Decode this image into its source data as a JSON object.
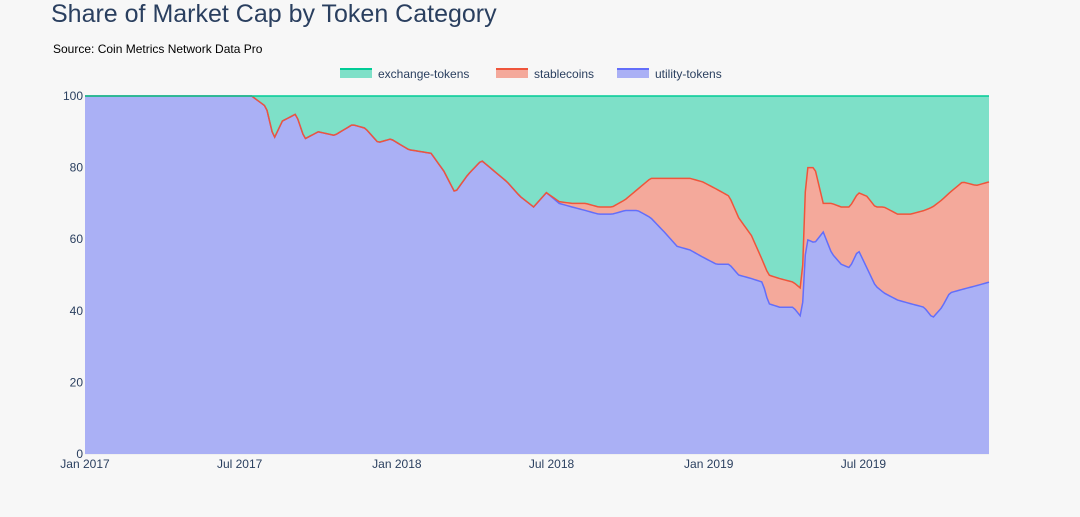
{
  "chart_data": {
    "type": "area",
    "title": "Share of Market Cap by Token Category",
    "subtitle": "Source: Coin Metrics Network Data Pro",
    "stacked": true,
    "x_tick_labels": [
      "Jan 2017",
      "Jul 2017",
      "Jan 2018",
      "Jul 2018",
      "Jan 2019",
      "Jul 2019"
    ],
    "x_tick_dates": [
      "2017-01-01",
      "2017-07-01",
      "2018-01-01",
      "2018-07-01",
      "2019-01-01",
      "2019-07-01"
    ],
    "y_ticks": [
      0,
      20,
      40,
      60,
      80,
      100
    ],
    "ylim": [
      0,
      100
    ],
    "xlim": [
      "2017-01-01",
      "2019-11-25"
    ],
    "legend_position": "top-center",
    "series": [
      {
        "name": "utility-tokens",
        "color": "#aab0f5",
        "line_color": "#636efa",
        "points": [
          [
            "2017-01-01",
            100
          ],
          [
            "2017-07-15",
            100
          ],
          [
            "2017-08-01",
            97
          ],
          [
            "2017-08-10",
            88
          ],
          [
            "2017-08-20",
            93
          ],
          [
            "2017-09-05",
            95
          ],
          [
            "2017-09-15",
            88
          ],
          [
            "2017-10-01",
            90
          ],
          [
            "2017-10-20",
            89
          ],
          [
            "2017-11-10",
            92
          ],
          [
            "2017-11-25",
            91
          ],
          [
            "2017-12-10",
            87
          ],
          [
            "2017-12-25",
            88
          ],
          [
            "2018-01-15",
            85
          ],
          [
            "2018-02-10",
            84
          ],
          [
            "2018-02-25",
            79
          ],
          [
            "2018-03-10",
            73
          ],
          [
            "2018-03-25",
            78
          ],
          [
            "2018-04-10",
            82
          ],
          [
            "2018-04-25",
            79
          ],
          [
            "2018-05-10",
            76
          ],
          [
            "2018-05-25",
            72
          ],
          [
            "2018-06-10",
            69
          ],
          [
            "2018-06-25",
            73
          ],
          [
            "2018-07-10",
            70
          ],
          [
            "2018-07-25",
            69
          ],
          [
            "2018-08-10",
            68
          ],
          [
            "2018-08-25",
            67
          ],
          [
            "2018-09-10",
            67
          ],
          [
            "2018-09-25",
            68
          ],
          [
            "2018-10-10",
            68
          ],
          [
            "2018-10-25",
            66
          ],
          [
            "2018-11-10",
            62
          ],
          [
            "2018-11-25",
            58
          ],
          [
            "2018-12-10",
            57
          ],
          [
            "2018-12-25",
            55
          ],
          [
            "2019-01-10",
            53
          ],
          [
            "2019-01-25",
            53
          ],
          [
            "2019-02-05",
            50
          ],
          [
            "2019-02-20",
            49
          ],
          [
            "2019-03-05",
            48
          ],
          [
            "2019-03-12",
            42
          ],
          [
            "2019-03-25",
            41
          ],
          [
            "2019-04-10",
            41
          ],
          [
            "2019-04-20",
            38
          ],
          [
            "2019-04-25",
            60
          ],
          [
            "2019-05-05",
            59
          ],
          [
            "2019-05-15",
            62
          ],
          [
            "2019-05-25",
            56
          ],
          [
            "2019-06-05",
            53
          ],
          [
            "2019-06-15",
            52
          ],
          [
            "2019-06-25",
            57
          ],
          [
            "2019-07-05",
            52
          ],
          [
            "2019-07-15",
            47
          ],
          [
            "2019-07-25",
            45
          ],
          [
            "2019-08-10",
            43
          ],
          [
            "2019-08-25",
            42
          ],
          [
            "2019-09-10",
            41
          ],
          [
            "2019-09-20",
            38
          ],
          [
            "2019-10-01",
            41
          ],
          [
            "2019-10-10",
            45
          ],
          [
            "2019-10-25",
            46
          ],
          [
            "2019-11-10",
            47
          ],
          [
            "2019-11-25",
            48
          ]
        ]
      },
      {
        "name": "stablecoins",
        "color": "#f4a99b",
        "line_color": "#ef553b",
        "points": [
          [
            "2017-01-01",
            0
          ],
          [
            "2018-06-25",
            0
          ],
          [
            "2018-07-25",
            1
          ],
          [
            "2018-08-10",
            2
          ],
          [
            "2018-08-25",
            2
          ],
          [
            "2018-09-10",
            2
          ],
          [
            "2018-09-25",
            3
          ],
          [
            "2018-10-10",
            6
          ],
          [
            "2018-10-25",
            11
          ],
          [
            "2018-11-10",
            15
          ],
          [
            "2018-11-25",
            19
          ],
          [
            "2018-12-10",
            20
          ],
          [
            "2018-12-25",
            21
          ],
          [
            "2019-01-10",
            21
          ],
          [
            "2019-01-25",
            19
          ],
          [
            "2019-02-05",
            16
          ],
          [
            "2019-02-20",
            12
          ],
          [
            "2019-03-05",
            6
          ],
          [
            "2019-03-12",
            8
          ],
          [
            "2019-03-25",
            8
          ],
          [
            "2019-04-10",
            7
          ],
          [
            "2019-04-20",
            8
          ],
          [
            "2019-04-25",
            20
          ],
          [
            "2019-05-05",
            21
          ],
          [
            "2019-05-15",
            8
          ],
          [
            "2019-05-25",
            14
          ],
          [
            "2019-06-05",
            16
          ],
          [
            "2019-06-15",
            17
          ],
          [
            "2019-06-25",
            16
          ],
          [
            "2019-07-05",
            20
          ],
          [
            "2019-07-15",
            22
          ],
          [
            "2019-07-25",
            24
          ],
          [
            "2019-08-10",
            24
          ],
          [
            "2019-08-25",
            25
          ],
          [
            "2019-09-10",
            27
          ],
          [
            "2019-09-20",
            31
          ],
          [
            "2019-10-01",
            30
          ],
          [
            "2019-10-10",
            28
          ],
          [
            "2019-10-25",
            30
          ],
          [
            "2019-11-10",
            28
          ],
          [
            "2019-11-25",
            28
          ]
        ]
      },
      {
        "name": "exchange-tokens",
        "color": "#7ee0c8",
        "line_color": "#00cc96",
        "remainder_to": 100
      }
    ]
  }
}
